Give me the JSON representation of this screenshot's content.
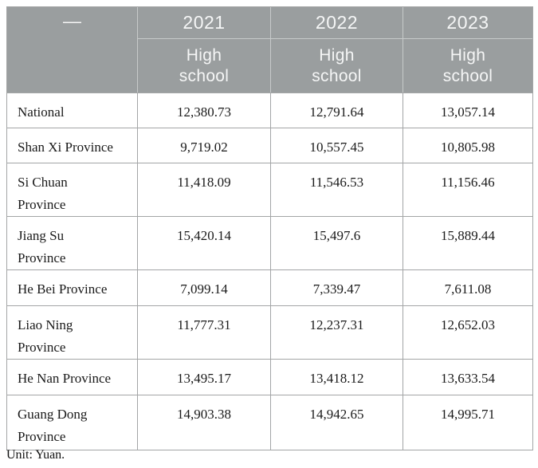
{
  "table": {
    "corner": "—",
    "years": [
      "2021",
      "2022",
      "2023"
    ],
    "subheaders": [
      "High\nschool",
      "High\nschool",
      "High\nschool"
    ],
    "rows": [
      {
        "label": "National",
        "values": [
          "12,380.73",
          "12,791.64",
          "13,057.14"
        ]
      },
      {
        "label": "Shan Xi Province",
        "values": [
          "9,719.02",
          "10,557.45",
          "10,805.98"
        ]
      },
      {
        "label": "Si Chuan\nProvince",
        "values": [
          "11,418.09",
          "11,546.53",
          "11,156.46"
        ]
      },
      {
        "label": "Jiang Su\nProvince",
        "values": [
          "15,420.14",
          "15,497.6",
          "15,889.44"
        ]
      },
      {
        "label": "He Bei Province",
        "values": [
          "7,099.14",
          "7,339.47",
          "7,611.08"
        ]
      },
      {
        "label": "Liao Ning\nProvince",
        "values": [
          "11,777.31",
          "12,237.31",
          "12,652.03"
        ]
      },
      {
        "label": "He Nan Province",
        "values": [
          "13,495.17",
          "13,418.12",
          "13,633.54"
        ]
      },
      {
        "label": "Guang Dong\nProvince",
        "values": [
          "14,903.38",
          "14,942.65",
          "14,995.71"
        ]
      }
    ]
  },
  "footnote": "Unit: Yuan.",
  "colors": {
    "header_bg": "#9a9e9f",
    "header_text": "#f5f6f6",
    "border": "#a3a5a6",
    "body_text": "#1a1a1a"
  }
}
